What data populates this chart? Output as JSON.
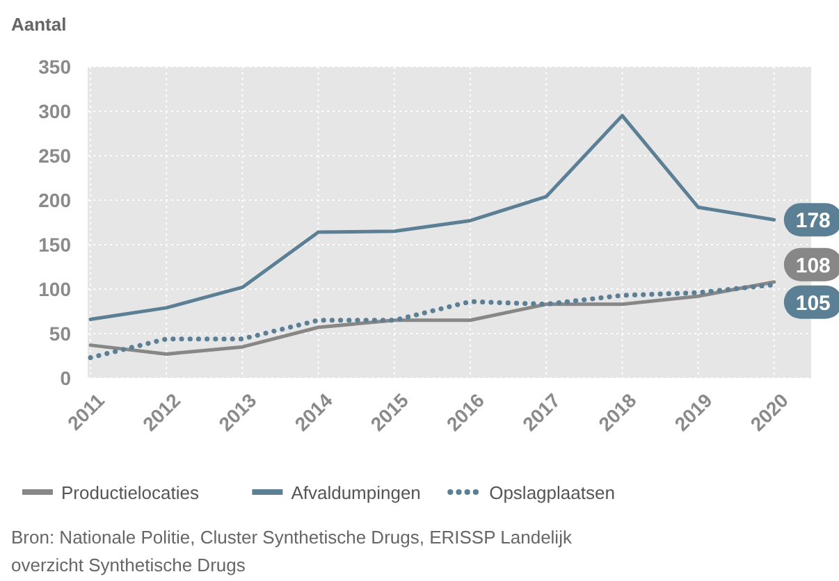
{
  "chart_data": {
    "type": "line",
    "ylabel": "Aantal",
    "categories": [
      "2011",
      "2012",
      "2013",
      "2014",
      "2015",
      "2016",
      "2017",
      "2018",
      "2019",
      "2020"
    ],
    "series": [
      {
        "name": "Productielocaties",
        "color": "#878787",
        "line_style": "solid",
        "values": [
          37,
          27,
          35,
          57,
          65,
          65,
          83,
          83,
          92,
          108
        ],
        "value_labels": [
          null,
          null,
          null,
          null,
          null,
          null,
          null,
          null,
          null,
          "108"
        ]
      },
      {
        "name": "Afvaldumpingen",
        "color": "#5b7f95",
        "line_style": "solid",
        "values": [
          66,
          79,
          102,
          164,
          165,
          177,
          204,
          295,
          192,
          178
        ],
        "value_labels": [
          null,
          null,
          null,
          null,
          null,
          null,
          null,
          null,
          null,
          "178"
        ]
      },
      {
        "name": "Opslagplaatsen",
        "color": "#5b7f95",
        "line_style": "dotted",
        "values": [
          23,
          44,
          44,
          65,
          65,
          86,
          83,
          93,
          96,
          105
        ],
        "value_labels": [
          null,
          null,
          null,
          null,
          null,
          null,
          null,
          null,
          null,
          "105"
        ]
      }
    ],
    "ylim": [
      0,
      350
    ],
    "yticks": [
      0,
      50,
      100,
      150,
      200,
      250,
      300,
      350
    ],
    "grid": true,
    "legend": "bottom",
    "annotations": [
      "Bron: Nationale Politie, Cluster Synthetische Drugs, ERISSP Landelijk overzicht Synthetische Drugs"
    ]
  }
}
